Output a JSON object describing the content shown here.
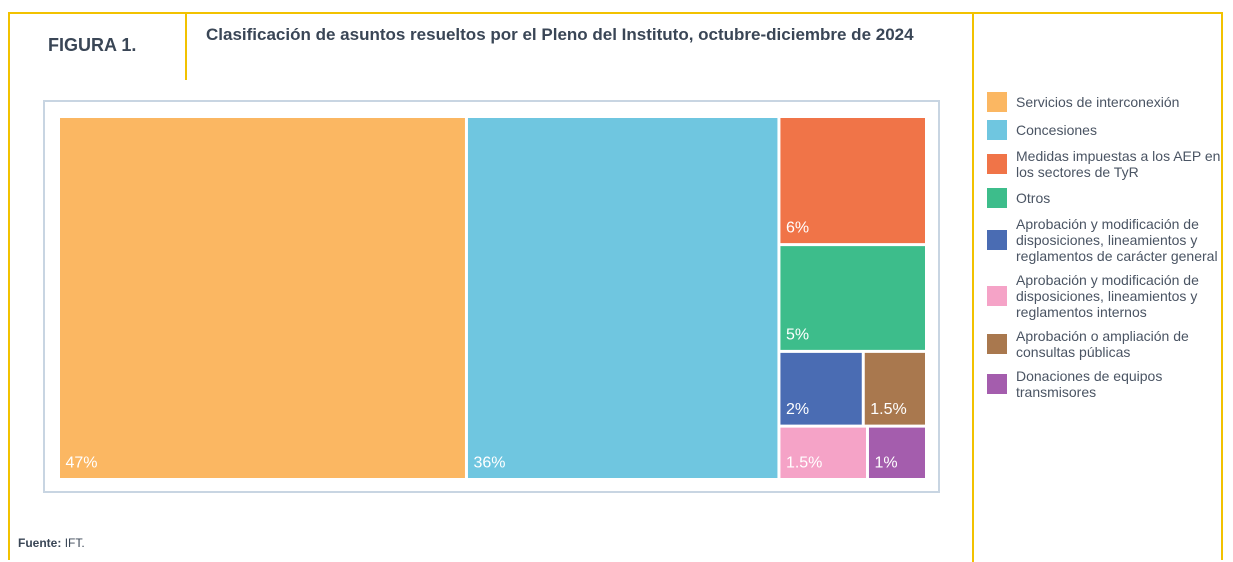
{
  "figure_label": "FIGURA 1.",
  "source": {
    "label": "Fuente:",
    "text": "IFT."
  },
  "chart_data": {
    "type": "treemap",
    "title": "Clasificación de asuntos resueltos por el Pleno del Instituto, octubre-diciembre de 2024",
    "categories": [
      "Servicios de interconexión",
      "Concesiones",
      "Medidas impuestas a los AEP en los sectores de TyR",
      "Otros",
      "Aprobación y modificación de disposiciones, lineamientos y reglamentos de carácter general",
      "Aprobación y modificación de disposiciones, lineamientos y reglamentos internos",
      "Aprobación o ampliación de consultas públicas",
      "Donaciones de equipos transmisores"
    ],
    "values": [
      47,
      36,
      6,
      5,
      2,
      1.5,
      1.5,
      1
    ],
    "value_labels": [
      "47%",
      "36%",
      "6%",
      "5%",
      "2%",
      "1.5%",
      "1.5%",
      "1%"
    ],
    "colors": [
      "#fbb762",
      "#6fc6e0",
      "#f07448",
      "#3dbd8b",
      "#4a6cb3",
      "#f5a3c7",
      "#a9784e",
      "#a45dad"
    ],
    "legend": "right"
  }
}
